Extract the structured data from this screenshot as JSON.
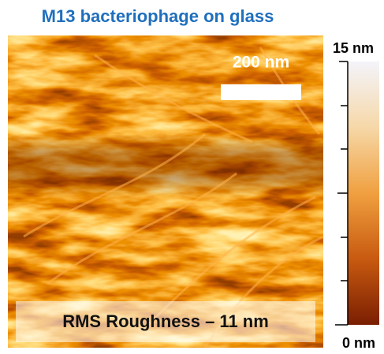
{
  "header": {
    "title": "M13 bacteriophage on glass"
  },
  "image": {
    "scale_bar_label": "200 nm",
    "annotation": "RMS Roughness – 11 nm"
  },
  "colorbar": {
    "max_label": "15 nm",
    "min_label": "0 nm"
  }
}
